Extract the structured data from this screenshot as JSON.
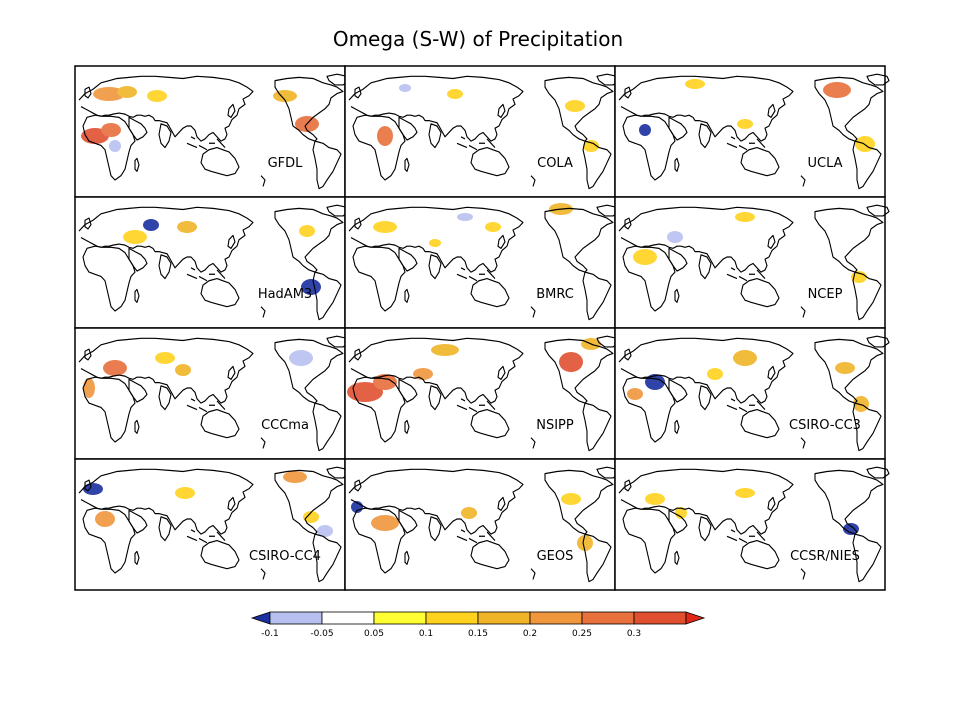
{
  "title": "Omega (S-W) of Precipitation",
  "panels": [
    {
      "label": "GFDL"
    },
    {
      "label": "COLA"
    },
    {
      "label": "UCLA"
    },
    {
      "label": "HadAM3"
    },
    {
      "label": "BMRC"
    },
    {
      "label": "NCEP"
    },
    {
      "label": "CCCma"
    },
    {
      "label": "NSIPP"
    },
    {
      "label": "CSIRO-CC3"
    },
    {
      "label": "CSIRO-CC4"
    },
    {
      "label": "GEOS"
    },
    {
      "label": "CCSR/NIES"
    }
  ],
  "colorbar": {
    "ticks": [
      "-0.1",
      "-0.05",
      "0.05",
      "0.1",
      "0.15",
      "0.2",
      "0.25",
      "0.3"
    ],
    "colors": [
      "#1a2fa0",
      "#b8c0f0",
      "#ffffff",
      "#ffff33",
      "#ffd21e",
      "#f0b428",
      "#f0963c",
      "#e8703c",
      "#e05030",
      "#e02818"
    ]
  },
  "colors": {
    "land_outline": "#000000",
    "page_background": "#ffffff",
    "panel_border": "#000000"
  }
}
